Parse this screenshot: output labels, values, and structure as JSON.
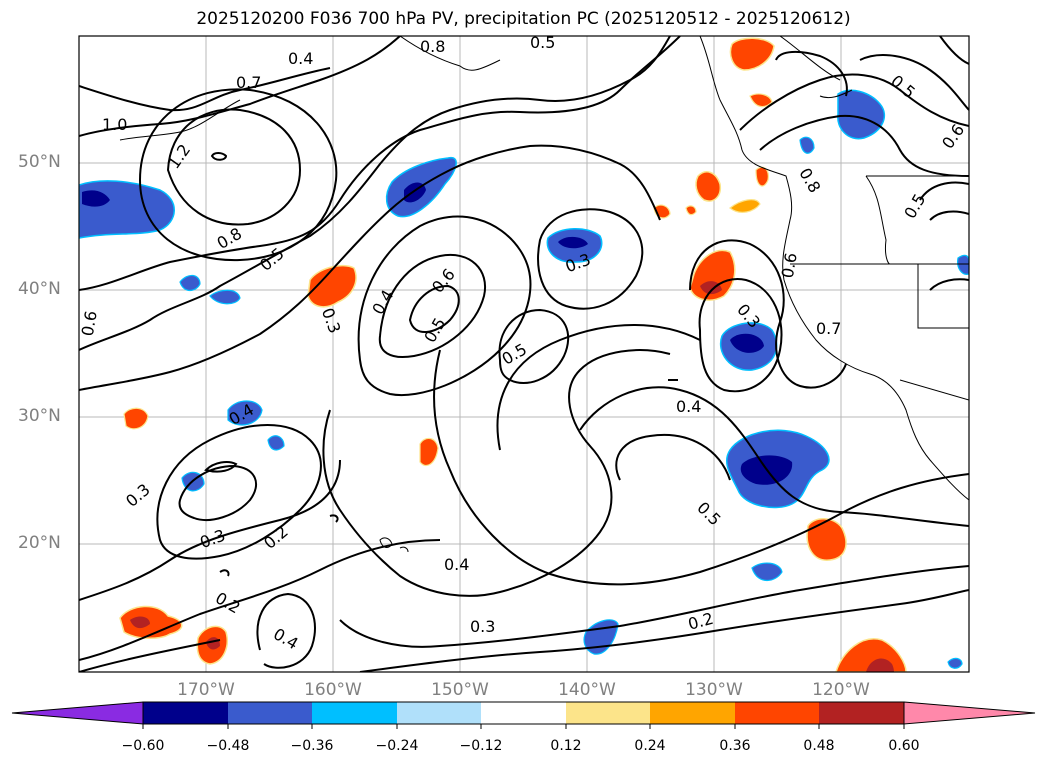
{
  "title": "2025120200 F036 700 hPa PV, precipitation PC (2025120512 - 2025120612)",
  "lat_labels": [
    "50°N",
    "40°N",
    "30°N",
    "20°N"
  ],
  "lon_labels": [
    "170°W",
    "160°W",
    "150°W",
    "140°W",
    "130°W",
    "120°W"
  ],
  "contour_labels": [
    "0.8",
    "0.5",
    "0.7",
    "1.0",
    "1.2",
    "0.4",
    "0.5",
    "0.6",
    "0.8",
    "0.5",
    "0.3",
    "0.4",
    "0.6",
    "0.5",
    "0.5",
    "0.3",
    "0.6",
    "0.3",
    "0.7",
    "0.4",
    "0.4",
    "0.3",
    "0.3",
    "0.2",
    "0.5",
    "0.2",
    "0.4",
    "0.3",
    "0.2",
    "0.4",
    "0.6",
    "0.8",
    "0.5"
  ],
  "colorbar": {
    "labels": [
      "−0.60",
      "−0.48",
      "−0.36",
      "−0.24",
      "−0.12",
      "0.12",
      "0.24",
      "0.36",
      "0.48",
      "0.60"
    ],
    "colors": [
      "#8a2be2",
      "#00008b",
      "#3a5bcd",
      "#00bfff",
      "#b0e0fa",
      "#ffffff",
      "#fce48a",
      "#ffa500",
      "#ff4500",
      "#b22222",
      "#ff88aa"
    ]
  },
  "fill_colors": {
    "neg_1": "#b0e0fa",
    "neg_2": "#00bfff",
    "neg_3": "#3a5bcd",
    "neg_4": "#00008b",
    "pos_1": "#fce48a",
    "pos_2": "#ffa500",
    "pos_3": "#ff4500",
    "pos_4": "#b22222"
  }
}
